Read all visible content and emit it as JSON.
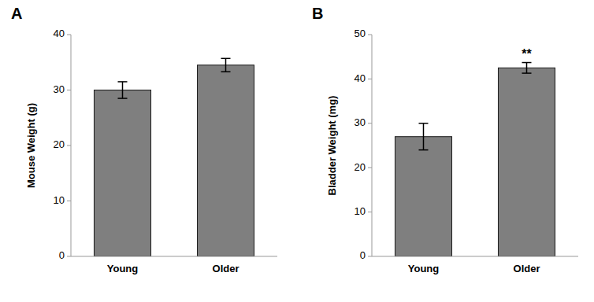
{
  "chart_data": [
    {
      "type": "bar",
      "title": "A",
      "categories": [
        "Young",
        "Older"
      ],
      "values": [
        30.0,
        34.5
      ],
      "errors": [
        1.5,
        1.2
      ],
      "color": "#7f7f7f",
      "ylabel": "Mouse Weight (g)",
      "ylim": [
        0,
        40
      ],
      "yticks": [
        0,
        10,
        20,
        30,
        40
      ]
    },
    {
      "type": "bar",
      "title": "B",
      "categories": [
        "Young",
        "Older"
      ],
      "values": [
        27.0,
        42.5
      ],
      "errors": [
        3.0,
        1.2
      ],
      "color": "#7f7f7f",
      "ylabel": "Bladder Weight (mg)",
      "ylim": [
        0,
        50
      ],
      "yticks": [
        0,
        10,
        20,
        30,
        40,
        50
      ],
      "annotations": [
        {
          "text": "**",
          "category": "Older"
        }
      ]
    }
  ]
}
